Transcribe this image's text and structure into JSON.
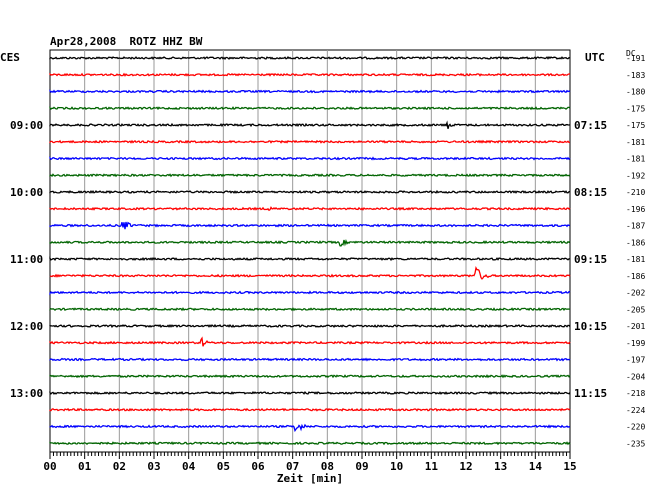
{
  "header": {
    "title": "Apr28,2008  ROTZ HHZ BW",
    "left_zone": "CES",
    "right_zone": "UTC",
    "dc_label": "DC"
  },
  "chart_data": {
    "type": "line",
    "title": "Apr28,2008  ROTZ HHZ BW",
    "xlabel": "Zeit [min]",
    "xlim": [
      0,
      15
    ],
    "x_ticks": [
      "00",
      "01",
      "02",
      "03",
      "04",
      "05",
      "06",
      "07",
      "08",
      "09",
      "10",
      "11",
      "12",
      "13",
      "14",
      "15"
    ],
    "row_count": 24,
    "colors": [
      "#000000",
      "#ff0000",
      "#0000ff",
      "#006400"
    ],
    "left_time_labels": [
      {
        "row": 4,
        "text": "09:00"
      },
      {
        "row": 8,
        "text": "10:00"
      },
      {
        "row": 12,
        "text": "11:00"
      },
      {
        "row": 16,
        "text": "12:00"
      },
      {
        "row": 20,
        "text": "13:00"
      }
    ],
    "right_time_labels": [
      {
        "row": 4,
        "text": "07:15"
      },
      {
        "row": 8,
        "text": "08:15"
      },
      {
        "row": 12,
        "text": "09:15"
      },
      {
        "row": 16,
        "text": "10:15"
      },
      {
        "row": 20,
        "text": "11:15"
      }
    ],
    "dc_offsets": [
      "-191",
      "-183",
      "-180",
      "-175",
      "-175",
      "-181",
      "-181",
      "-192",
      "-210",
      "-196",
      "-187",
      "-186",
      "-181",
      "-186",
      "-202",
      "-205",
      "-201",
      "-199",
      "-197",
      "-204",
      "-218",
      "-224",
      "-220",
      "-235"
    ],
    "events": [
      {
        "row": 4,
        "minute": 11.45,
        "amplitude": 5,
        "duration": 0.35
      },
      {
        "row": 9,
        "minute": 6.3,
        "amplitude": 2.5,
        "duration": 0.4
      },
      {
        "row": 10,
        "minute": 2.1,
        "amplitude": 6,
        "duration": 0.5
      },
      {
        "row": 11,
        "minute": 8.4,
        "amplitude": 4,
        "duration": 0.4
      },
      {
        "row": 13,
        "minute": 12.3,
        "amplitude": 9,
        "duration": 0.5
      },
      {
        "row": 17,
        "minute": 4.4,
        "amplitude": 5,
        "duration": 0.3
      },
      {
        "row": 22,
        "minute": 7.1,
        "amplitude": 6,
        "duration": 0.5
      }
    ]
  }
}
